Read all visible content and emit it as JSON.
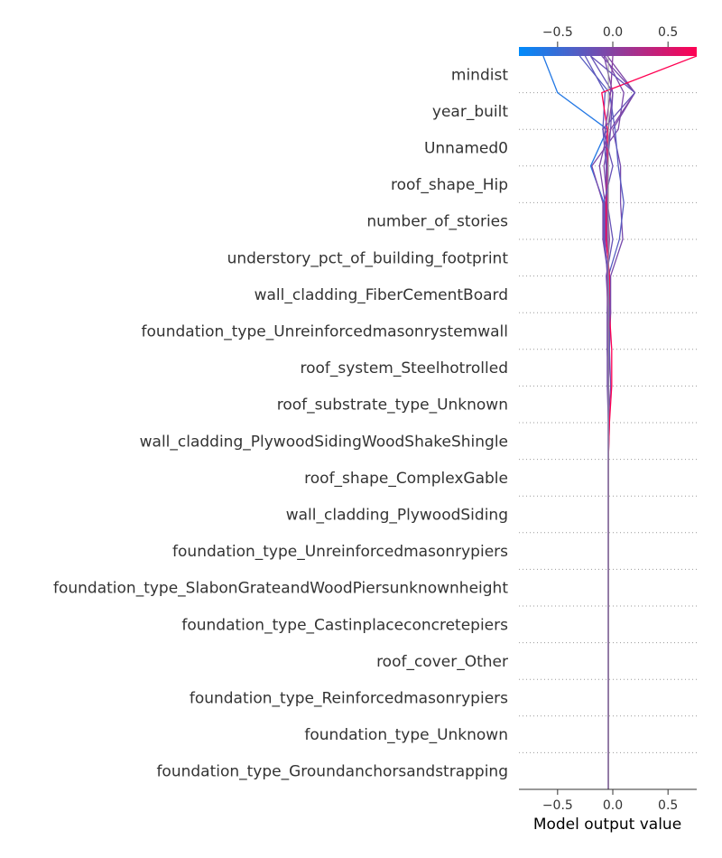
{
  "chart_data": {
    "type": "line",
    "title": "",
    "xlabel": "Model output value",
    "ylabel": "",
    "xlim": [
      -0.85,
      0.76
    ],
    "xticks": [
      -0.5,
      0.0,
      0.5
    ],
    "xtick_labels": [
      "−0.5",
      "0.0",
      "0.5"
    ],
    "base_value": -0.04,
    "grid": "dotted horizontal separators",
    "colorbar": {
      "min": -0.85,
      "max": 0.76,
      "colors": [
        "#008bfb",
        "#ff0052"
      ]
    },
    "features": [
      "mindist",
      "year_built",
      "Unnamed0",
      "roof_shape_Hip",
      "number_of_stories",
      "understory_pct_of_building_footprint",
      "wall_cladding_FiberCementBoard",
      "foundation_type_Unreinforcedmasonrystemwall",
      "roof_system_Steelhotrolled",
      "roof_substrate_type_Unknown",
      "wall_cladding_PlywoodSidingWoodShakeShingle",
      "roof_shape_ComplexGable",
      "wall_cladding_PlywoodSiding",
      "foundation_type_Unreinforcedmasonrypiers",
      "foundation_type_SlabonGrateandWoodPiersunknownheight",
      "foundation_type_Castinplaceconcretepiers",
      "roof_cover_Other",
      "foundation_type_Reinforcedmasonrypiers",
      "foundation_type_Unknown",
      "foundation_type_Groundanchorsandstrapping"
    ],
    "series": [
      {
        "values": [
          -0.04,
          -0.04,
          -0.04,
          -0.04,
          -0.04,
          -0.04,
          -0.04,
          -0.04,
          -0.04,
          -0.04,
          -0.04,
          -0.04,
          -0.04,
          -0.03,
          -0.04,
          -0.08,
          -0.08,
          -0.2,
          -0.05,
          -0.5,
          -0.63
        ]
      },
      {
        "values": [
          -0.04,
          -0.04,
          -0.04,
          -0.04,
          -0.04,
          -0.04,
          -0.04,
          -0.04,
          -0.04,
          -0.04,
          -0.03,
          -0.04,
          -0.03,
          -0.03,
          -0.04,
          -0.09,
          -0.09,
          -0.19,
          0.05,
          0.1,
          -0.07
        ]
      },
      {
        "values": [
          -0.04,
          -0.04,
          -0.04,
          -0.04,
          -0.04,
          -0.04,
          -0.04,
          -0.04,
          -0.04,
          -0.04,
          -0.04,
          -0.05,
          -0.05,
          -0.02,
          -0.02,
          0.09,
          0.07,
          0.07,
          0.0,
          0.2,
          -0.1
        ]
      },
      {
        "values": [
          -0.04,
          -0.04,
          -0.04,
          -0.04,
          -0.04,
          -0.04,
          -0.04,
          -0.04,
          -0.04,
          -0.04,
          -0.04,
          -0.04,
          -0.05,
          -0.05,
          -0.04,
          0.06,
          0.1,
          0.05,
          0.02,
          -0.03,
          -0.3
        ]
      },
      {
        "values": [
          -0.04,
          -0.04,
          -0.04,
          -0.04,
          -0.04,
          -0.04,
          -0.04,
          -0.04,
          -0.04,
          -0.04,
          -0.04,
          -0.04,
          -0.04,
          -0.04,
          -0.06,
          0.0,
          -0.05,
          -0.05,
          -0.02,
          0.0,
          -0.2
        ]
      },
      {
        "values": [
          -0.04,
          -0.04,
          -0.04,
          -0.04,
          -0.04,
          -0.04,
          -0.04,
          -0.04,
          -0.04,
          -0.04,
          -0.04,
          -0.02,
          -0.03,
          -0.02,
          -0.04,
          -0.05,
          -0.05,
          -0.08,
          -0.02,
          0.2,
          -0.05
        ]
      },
      {
        "values": [
          -0.04,
          -0.04,
          -0.04,
          -0.04,
          -0.04,
          -0.04,
          -0.04,
          -0.04,
          -0.04,
          -0.04,
          -0.04,
          -0.04,
          -0.03,
          -0.04,
          -0.03,
          -0.06,
          -0.06,
          -0.06,
          -0.09,
          -0.07,
          -0.25
        ]
      },
      {
        "values": [
          -0.04,
          -0.04,
          -0.04,
          -0.04,
          -0.04,
          -0.04,
          -0.04,
          -0.04,
          -0.04,
          -0.04,
          -0.04,
          -0.04,
          -0.05,
          -0.05,
          -0.05,
          -0.07,
          -0.07,
          -0.12,
          -0.04,
          0.0,
          -0.08
        ]
      },
      {
        "values": [
          -0.04,
          -0.04,
          -0.04,
          -0.04,
          -0.04,
          -0.04,
          -0.04,
          -0.04,
          -0.04,
          -0.04,
          -0.03,
          -0.01,
          -0.01,
          -0.03,
          -0.03,
          -0.06,
          -0.06,
          -0.05,
          -0.05,
          -0.1,
          0.76
        ]
      },
      {
        "values": [
          -0.04,
          -0.04,
          -0.04,
          -0.04,
          -0.04,
          -0.04,
          -0.04,
          -0.04,
          -0.04,
          -0.04,
          -0.04,
          -0.04,
          -0.04,
          -0.04,
          -0.05,
          -0.03,
          -0.05,
          -0.05,
          -0.07,
          -0.02,
          0.0
        ]
      },
      {
        "values": [
          -0.04,
          -0.04,
          -0.04,
          -0.04,
          -0.04,
          -0.04,
          -0.04,
          -0.04,
          -0.04,
          -0.04,
          -0.04,
          -0.04,
          -0.04,
          -0.03,
          -0.04,
          -0.08,
          -0.08,
          0.0,
          -0.09,
          0.2,
          -0.2
        ]
      }
    ]
  }
}
